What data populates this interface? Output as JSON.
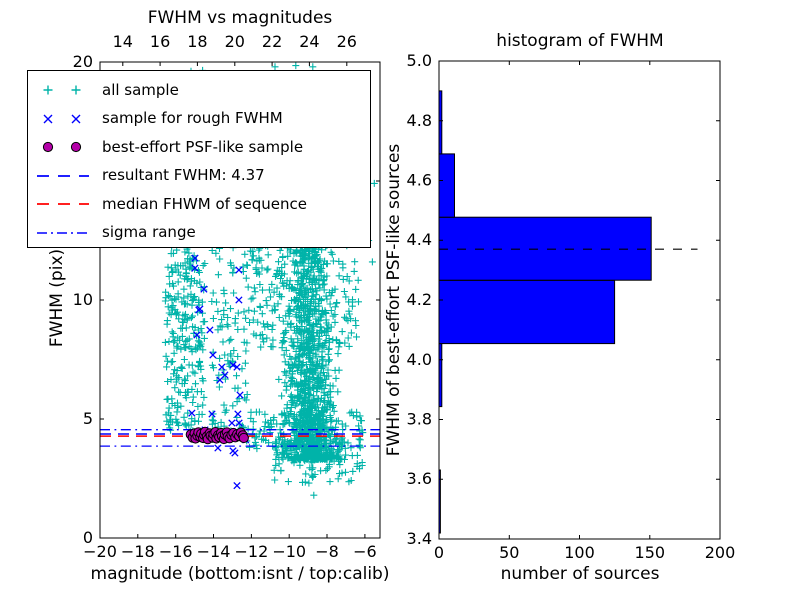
{
  "figure": {
    "background": "#ffffff"
  },
  "colors": {
    "cyan": "#00b3a9",
    "blue": "#0000ff",
    "magenta": "#b400a8",
    "red": "#ff0000",
    "black": "#000000"
  },
  "chart_data": [
    {
      "type": "scatter",
      "title": "FWHM vs magnitudes",
      "xlabel": "magnitude (bottom:isnt / top:calib)",
      "ylabel": "FWHM (pix)",
      "xlim": [
        -20,
        -5.2
      ],
      "ylim": [
        0,
        20
      ],
      "top_xlim": [
        12.78,
        27.78
      ],
      "xticks": [
        -20,
        -18,
        -16,
        -14,
        -12,
        -10,
        -8,
        -6
      ],
      "xtick_labels": [
        "−20",
        "−18",
        "−16",
        "−14",
        "−12",
        "−10",
        "−8",
        "−6"
      ],
      "yticks": [
        0,
        5,
        10,
        15,
        20
      ],
      "ytick_labels": [
        "0",
        "5",
        "10",
        "15",
        "20"
      ],
      "top_xticks": [
        14,
        16,
        18,
        20,
        22,
        24,
        26
      ],
      "top_xtick_labels": [
        "14",
        "16",
        "18",
        "20",
        "22",
        "24",
        "26"
      ],
      "grid": false,
      "legend_position": "upper left",
      "hlines": [
        {
          "name": "resultant FWHM",
          "value": 4.37,
          "color": "blue",
          "style": "dashed"
        },
        {
          "name": "median FHWM of sequence",
          "value": 4.28,
          "color": "red",
          "style": "dashed"
        },
        {
          "name": "sigma range upper",
          "value": 4.55,
          "color": "blue",
          "style": "dashdot"
        },
        {
          "name": "sigma range lower",
          "value": 3.86,
          "color": "blue",
          "style": "dashdot"
        }
      ],
      "series": [
        {
          "name": "all sample",
          "marker": "plus",
          "color": "cyan",
          "clusters": [
            {
              "n": 250,
              "kind": "uniform",
              "x": [
                -16.55,
                -14.45
              ],
              "y": [
                4.5,
                12.4
              ]
            },
            {
              "n": 45,
              "kind": "uniform",
              "x": [
                -16.3,
                -14.55
              ],
              "y": [
                12.4,
                19.8
              ]
            },
            {
              "n": 95,
              "kind": "uniform",
              "x": [
                -14.1,
                -12.2
              ],
              "y": [
                3.9,
                12.4
              ]
            },
            {
              "n": 1150,
              "kind": "cloud",
              "cx": -8.85,
              "xspread": 1.5,
              "x": [
                -11.9,
                -5.95
              ],
              "y": [
                3.3,
                12.4
              ],
              "pow": 1.8
            },
            {
              "n": 230,
              "kind": "uniform",
              "x": [
                -12.3,
                -6.3
              ],
              "y": [
                8.0,
                12.45
              ]
            },
            {
              "n": 60,
              "kind": "uniform",
              "x": [
                -10.8,
                -6.0
              ],
              "y": [
                2.3,
                3.7
              ]
            },
            {
              "n": 160,
              "kind": "uniform",
              "x": [
                -12.25,
                -6.1
              ],
              "y": [
                3.7,
                5.3
              ]
            },
            {
              "n": 12,
              "kind": "uniform",
              "x": [
                -15.3,
                -12.4
              ],
              "y": [
                4.2,
                4.95
              ]
            }
          ],
          "points": [
            [
              -10.75,
              19.8
            ],
            [
              -9.65,
              19.85
            ],
            [
              -8.75,
              19.8
            ],
            [
              -8.7,
              1.8
            ],
            [
              -5.5,
              14.9
            ],
            [
              -5.6,
              11.6
            ],
            [
              -5.8,
              12.5
            ]
          ]
        },
        {
          "name": "sample for rough FWHM",
          "marker": "x",
          "color": "blue",
          "points": [
            [
              -14.98,
              11.76
            ],
            [
              -14.98,
              11.34
            ],
            [
              -12.66,
              11.26
            ],
            [
              -14.51,
              10.46
            ],
            [
              -12.66,
              10.0
            ],
            [
              -14.72,
              9.62
            ],
            [
              -14.78,
              9.58
            ],
            [
              -14.88,
              8.53
            ],
            [
              -14.19,
              8.74
            ],
            [
              -14.03,
              7.69
            ],
            [
              -13.56,
              7.18
            ],
            [
              -13.4,
              6.85
            ],
            [
              -13.66,
              6.64
            ],
            [
              -12.76,
              7.18
            ],
            [
              -12.97,
              7.27
            ],
            [
              -12.6,
              6.01
            ],
            [
              -15.14,
              5.25
            ],
            [
              -14.08,
              5.21
            ],
            [
              -12.71,
              5.21
            ],
            [
              -12.65,
              4.83
            ],
            [
              -13.03,
              4.83
            ],
            [
              -14.45,
              4.54
            ],
            [
              -13.2,
              4.24
            ],
            [
              -12.3,
              4.12
            ],
            [
              -13.77,
              3.78
            ],
            [
              -12.87,
              3.57
            ],
            [
              -12.97,
              3.66
            ],
            [
              -12.76,
              2.2
            ]
          ]
        },
        {
          "name": "best-effort PSF-like sample",
          "marker": "circle",
          "color": "magenta",
          "points": [
            [
              -15.2,
              4.35
            ],
            [
              -15.1,
              4.22
            ],
            [
              -15.0,
              4.4
            ],
            [
              -14.95,
              4.18
            ],
            [
              -14.85,
              4.3
            ],
            [
              -14.8,
              4.44
            ],
            [
              -14.7,
              4.25
            ],
            [
              -14.65,
              4.38
            ],
            [
              -14.55,
              4.2
            ],
            [
              -14.5,
              4.33
            ],
            [
              -14.45,
              4.46
            ],
            [
              -14.35,
              4.27
            ],
            [
              -14.3,
              4.15
            ],
            [
              -14.2,
              4.4
            ],
            [
              -14.15,
              4.3
            ],
            [
              -14.05,
              4.22
            ],
            [
              -14.0,
              4.36
            ],
            [
              -13.9,
              4.45
            ],
            [
              -13.85,
              4.18
            ],
            [
              -13.75,
              4.32
            ],
            [
              -13.7,
              4.24
            ],
            [
              -13.6,
              4.41
            ],
            [
              -13.55,
              4.28
            ],
            [
              -13.45,
              4.16
            ],
            [
              -13.4,
              4.35
            ],
            [
              -13.3,
              4.44
            ],
            [
              -13.25,
              4.26
            ],
            [
              -13.15,
              4.19
            ],
            [
              -13.05,
              4.33
            ],
            [
              -12.95,
              4.41
            ],
            [
              -12.85,
              4.23
            ],
            [
              -12.75,
              4.36
            ],
            [
              -12.65,
              4.28
            ],
            [
              -12.55,
              4.43
            ],
            [
              -12.45,
              4.31
            ],
            [
              -12.4,
              4.2
            ]
          ]
        }
      ],
      "legend": {
        "items": [
          {
            "label": "all sample",
            "marker": "plus",
            "color": "cyan"
          },
          {
            "label": "sample for rough FWHM",
            "marker": "x",
            "color": "blue"
          },
          {
            "label": "best-effort PSF-like sample",
            "marker": "circle",
            "color": "magenta"
          },
          {
            "label": "resultant FWHM: 4.37",
            "marker": "dashed-line",
            "color": "blue"
          },
          {
            "label": "median FHWM of sequence",
            "marker": "dashed-line",
            "color": "red"
          },
          {
            "label": "sigma range",
            "marker": "dashdot-line",
            "color": "blue"
          }
        ]
      }
    },
    {
      "type": "bar",
      "orientation": "horizontal",
      "title": "histogram of FWHM",
      "xlabel": "number of sources",
      "ylabel": "FWHM of best-effort PSF-like sources",
      "xlim": [
        0,
        200
      ],
      "ylim": [
        3.4,
        5.0
      ],
      "xticks": [
        0,
        50,
        100,
        150,
        200
      ],
      "xtick_labels": [
        "0",
        "50",
        "100",
        "150",
        "200"
      ],
      "yticks": [
        3.4,
        3.6,
        3.8,
        4.0,
        4.2,
        4.4,
        4.6,
        4.8,
        5.0
      ],
      "ytick_labels": [
        "3.4",
        "3.6",
        "3.8",
        "4.0",
        "4.2",
        "4.4",
        "4.6",
        "4.8",
        "5.0"
      ],
      "bin_edges": [
        3.42,
        3.631,
        3.843,
        4.054,
        4.266,
        4.477,
        4.689,
        4.9
      ],
      "counts": [
        1,
        0,
        2,
        125,
        151,
        11,
        2
      ],
      "bar_color": "blue",
      "grid": false,
      "hline": {
        "name": "resultant FWHM",
        "value": 4.37,
        "color": "black",
        "style": "dashed",
        "x_end": 184
      }
    }
  ]
}
